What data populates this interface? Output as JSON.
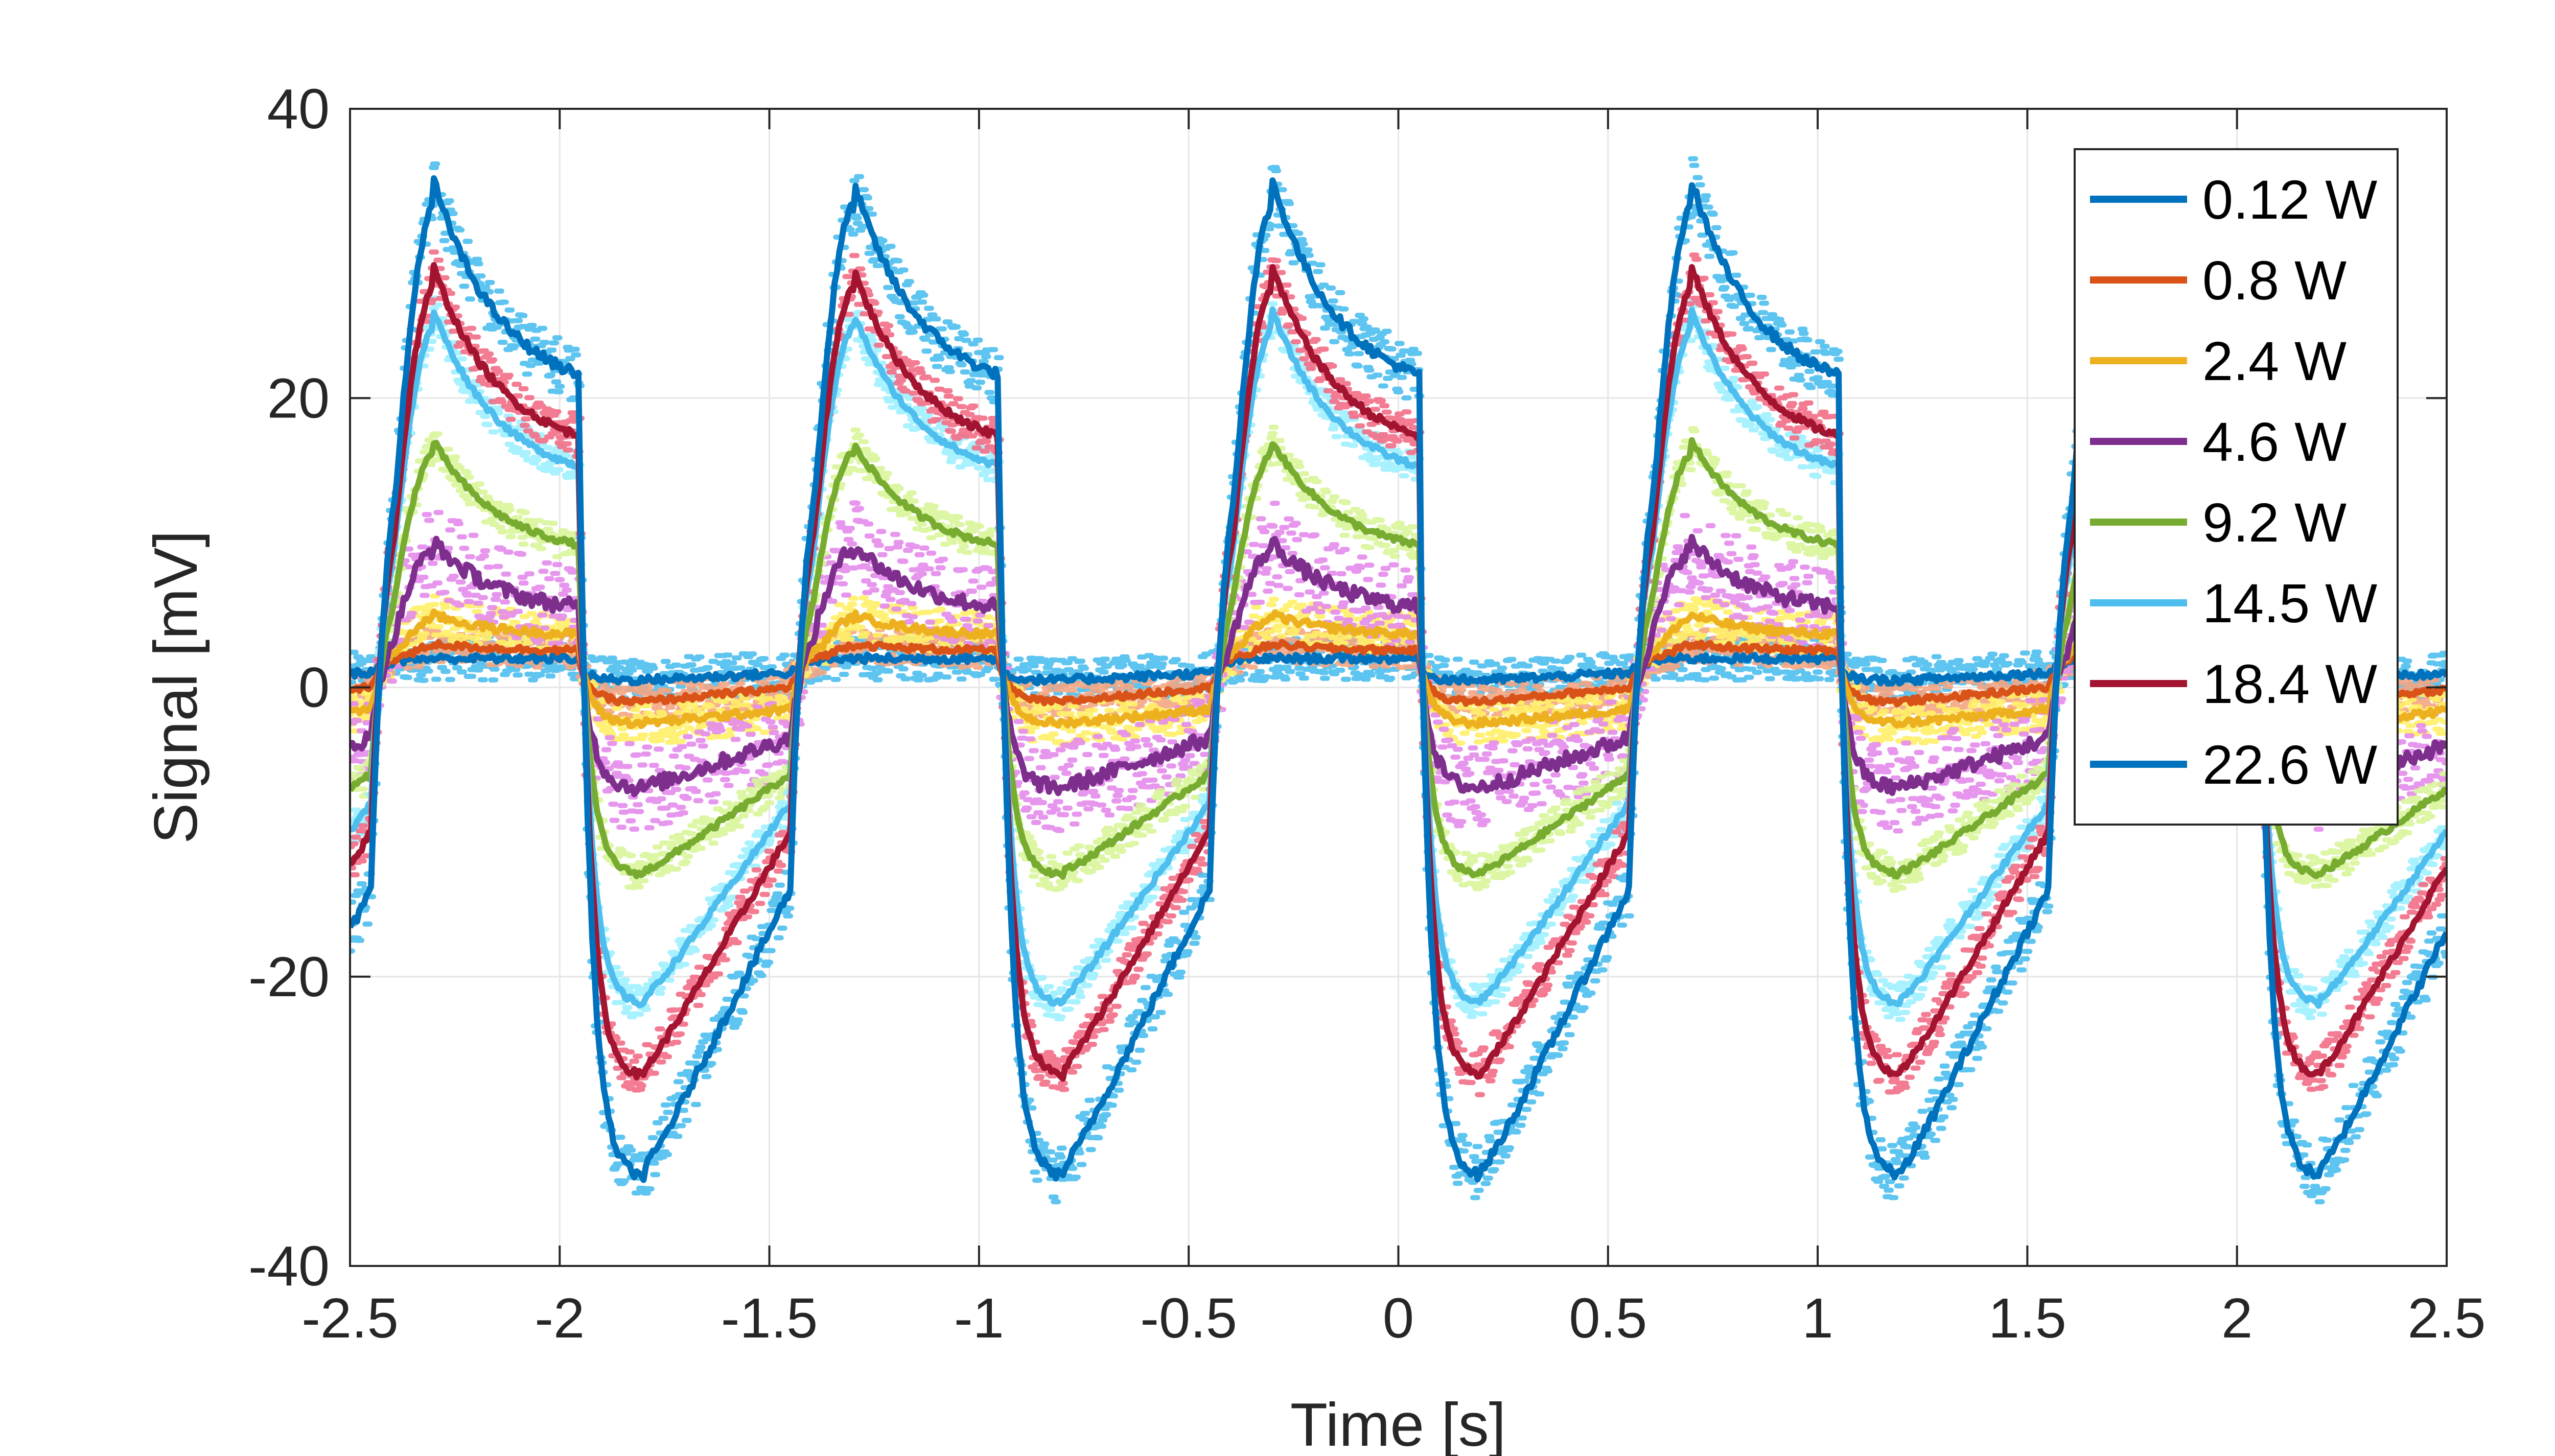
{
  "chart_data": {
    "type": "line",
    "xlabel": "Time [s]",
    "ylabel": "Signal [mV]",
    "xlim": [
      -2.5,
      2.5
    ],
    "ylim": [
      -40,
      40
    ],
    "xticks": [
      -2.5,
      -2,
      -1.5,
      -1,
      -0.5,
      0,
      0.5,
      1,
      1.5,
      2,
      2.5
    ],
    "xtick_labels": [
      "-2.5",
      "-2",
      "-1.5",
      "-1",
      "-0.5",
      "0",
      "0.5",
      "1",
      "1.5",
      "2",
      "2.5"
    ],
    "yticks": [
      -40,
      -20,
      0,
      20,
      40
    ],
    "ytick_labels": [
      "-40",
      "-20",
      "0",
      "20",
      "40"
    ],
    "grid": true,
    "legend_position": "top-right",
    "period_s": 1.0,
    "series": [
      {
        "name": "0.12 W",
        "color": "#0072BD",
        "scatter_color": "#4DBEEE",
        "on_level": 2,
        "off_level": 1,
        "peak": 2,
        "trough": 0.5,
        "noise": 1.5
      },
      {
        "name": "0.8 W",
        "color": "#D95319",
        "scatter_color": "#F4A582",
        "on_level": 2.5,
        "off_level": 0,
        "peak": 3,
        "trough": -1,
        "noise": 1.2
      },
      {
        "name": "2.4 W",
        "color": "#EDB120",
        "scatter_color": "#FFF066",
        "on_level": 3.5,
        "off_level": -1.5,
        "peak": 5,
        "trough": -2.5,
        "noise": 1.5
      },
      {
        "name": "4.6 W",
        "color": "#7E2F8E",
        "scatter_color": "#E48BEB",
        "on_level": 5,
        "off_level": -3.5,
        "peak": 10,
        "trough": -7,
        "noise": 3
      },
      {
        "name": "9.2 W",
        "color": "#77AC30",
        "scatter_color": "#D8F59A",
        "on_level": 9,
        "off_level": -6,
        "peak": 17,
        "trough": -13,
        "noise": 1.2
      },
      {
        "name": "14.5 W",
        "color": "#4DBEEE",
        "scatter_color": "#9EF0FF",
        "on_level": 14,
        "off_level": -8,
        "peak": 26,
        "trough": -22,
        "noise": 1.2
      },
      {
        "name": "18.4 W",
        "color": "#A2142F",
        "scatter_color": "#F26D86",
        "on_level": 16,
        "off_level": -10,
        "peak": 29,
        "trough": -27,
        "noise": 1.5
      },
      {
        "name": "22.6 W",
        "color": "#0072BD",
        "scatter_color": "#4DBEEE",
        "on_level": 20,
        "off_level": -14,
        "peak": 35,
        "trough": -34,
        "noise": 2
      }
    ]
  }
}
